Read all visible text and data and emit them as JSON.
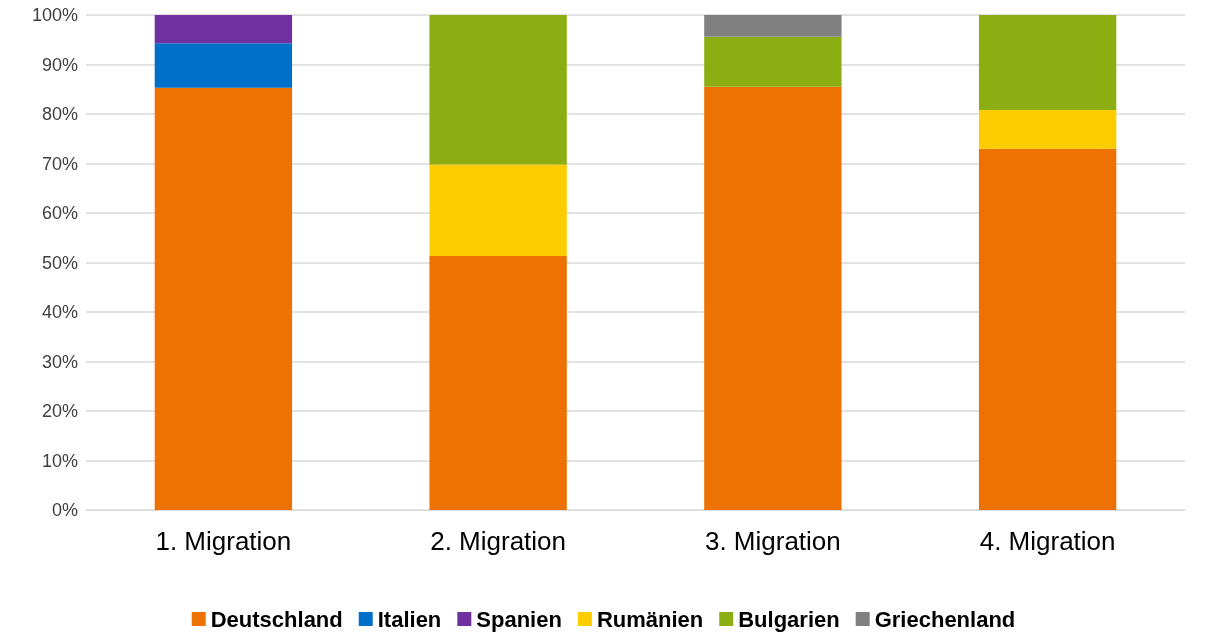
{
  "chart_data": {
    "type": "bar",
    "stacked": true,
    "categories": [
      "1. Migration",
      "2. Migration",
      "3. Migration",
      "4. Migration"
    ],
    "series": [
      {
        "name": "Deutschland",
        "color": "#ed7203",
        "values": [
          85.3,
          51.3,
          85.5,
          73.0
        ]
      },
      {
        "name": "Italien",
        "color": "#006fc8",
        "values": [
          9.0,
          null,
          null,
          null
        ]
      },
      {
        "name": "Spanien",
        "color": "#7030a0",
        "values": [
          5.7,
          null,
          null,
          null
        ]
      },
      {
        "name": "Rumänien",
        "color": "#ffcc00",
        "values": [
          null,
          18.5,
          null,
          7.8
        ]
      },
      {
        "name": "Bulgarien",
        "color": "#8cae12",
        "values": [
          null,
          30.2,
          10.1,
          19.2
        ]
      },
      {
        "name": "Griechenland",
        "color": "#808080",
        "values": [
          null,
          null,
          4.4,
          null
        ]
      }
    ],
    "ylim": [
      0,
      100
    ],
    "yticks": [
      {
        "value": 0,
        "label": "0%"
      },
      {
        "value": 10,
        "label": "10%"
      },
      {
        "value": 20,
        "label": "20%"
      },
      {
        "value": 30,
        "label": "30%"
      },
      {
        "value": 40,
        "label": "40%"
      },
      {
        "value": 50,
        "label": "50%"
      },
      {
        "value": 60,
        "label": "60%"
      },
      {
        "value": 70,
        "label": "70%"
      },
      {
        "value": 80,
        "label": "80%"
      },
      {
        "value": 90,
        "label": "90%"
      },
      {
        "value": 100,
        "label": "100%"
      }
    ],
    "grid": "y",
    "legend": "bottom"
  }
}
